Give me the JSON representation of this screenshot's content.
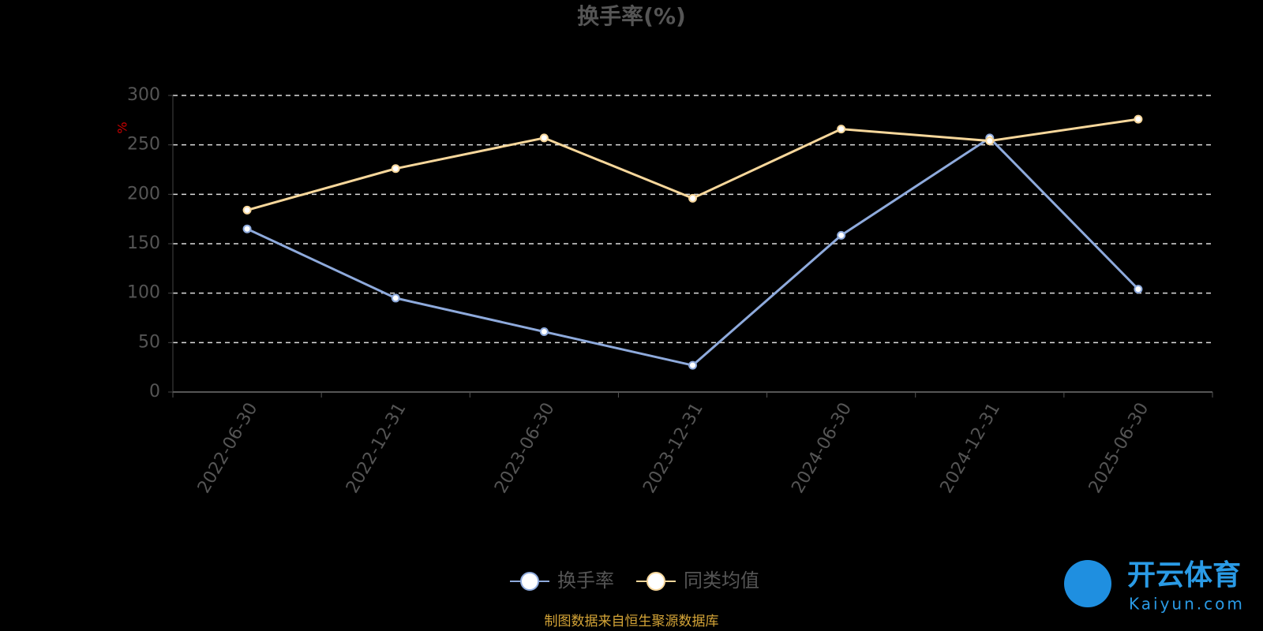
{
  "chart_data": {
    "type": "line",
    "title": "换手率(%)",
    "y_label": "%",
    "categories": [
      "2022-06-30",
      "2022-12-31",
      "2023-06-30",
      "2023-12-31",
      "2024-06-30",
      "2024-12-31",
      "2025-06-30"
    ],
    "series": [
      {
        "name": "换手率",
        "color": "#8eaadc",
        "values": [
          165,
          95,
          61,
          27,
          158.5,
          257,
          104
        ]
      },
      {
        "name": "同类均值",
        "color": "#f7d79b",
        "values": [
          184,
          226,
          257,
          196,
          266,
          254,
          276
        ]
      }
    ],
    "ylim": [
      0,
      300
    ],
    "yticks": [
      0,
      50,
      100,
      150,
      200,
      250,
      300
    ],
    "grid": true,
    "legend": "bottom",
    "source": "制图数据来自恒生聚源数据库",
    "watermark": {
      "name": "开云体育",
      "site": "Kaiyun.com"
    }
  }
}
